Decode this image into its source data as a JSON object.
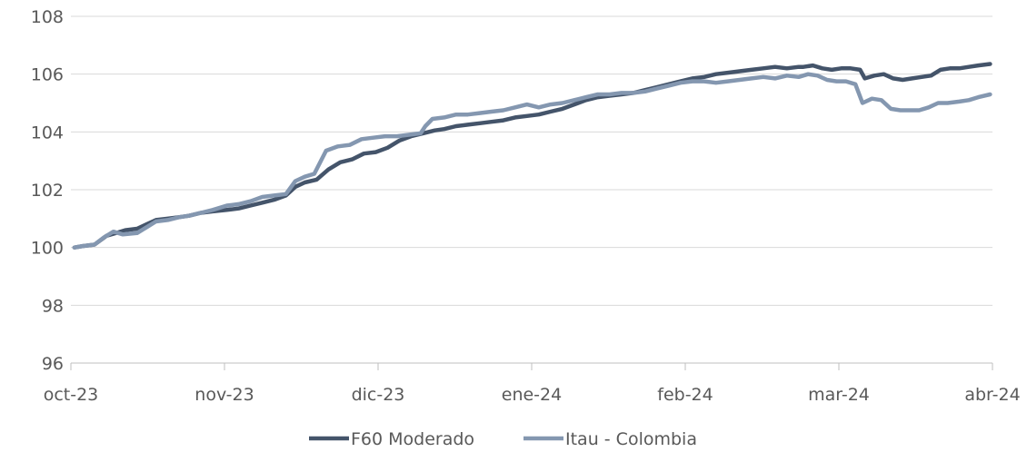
{
  "chart_data": {
    "type": "line",
    "title": "",
    "xlabel": "",
    "ylabel": "",
    "x_ticks": [
      "oct-23",
      "nov-23",
      "dic-23",
      "ene-24",
      "feb-24",
      "mar-24",
      "abr-24"
    ],
    "y_ticks": [
      96,
      98,
      100,
      102,
      104,
      106,
      108
    ],
    "ylim": [
      96,
      108
    ],
    "grid": true,
    "legend_position": "bottom",
    "series": [
      {
        "name": "F60 Moderado",
        "color": "#44546a",
        "points": [
          [
            0.15,
            100.0
          ],
          [
            0.5,
            100.05
          ],
          [
            1.0,
            100.1
          ],
          [
            1.5,
            100.4
          ],
          [
            1.9,
            100.5
          ],
          [
            2.3,
            100.6
          ],
          [
            2.8,
            100.65
          ],
          [
            3.2,
            100.8
          ],
          [
            3.6,
            100.95
          ],
          [
            4.1,
            101.0
          ],
          [
            4.6,
            101.05
          ],
          [
            5.0,
            101.1
          ],
          [
            5.5,
            101.2
          ],
          [
            6.0,
            101.25
          ],
          [
            6.6,
            101.3
          ],
          [
            7.1,
            101.35
          ],
          [
            7.6,
            101.45
          ],
          [
            8.1,
            101.55
          ],
          [
            8.6,
            101.65
          ],
          [
            9.1,
            101.8
          ],
          [
            9.5,
            102.1
          ],
          [
            9.9,
            102.25
          ],
          [
            10.4,
            102.35
          ],
          [
            10.9,
            102.7
          ],
          [
            11.4,
            102.95
          ],
          [
            11.9,
            103.05
          ],
          [
            12.4,
            103.25
          ],
          [
            12.9,
            103.3
          ],
          [
            13.4,
            103.45
          ],
          [
            13.9,
            103.7
          ],
          [
            14.4,
            103.85
          ],
          [
            14.9,
            103.95
          ],
          [
            15.4,
            104.05
          ],
          [
            15.8,
            104.1
          ],
          [
            16.3,
            104.2
          ],
          [
            16.8,
            104.25
          ],
          [
            17.3,
            104.3
          ],
          [
            17.8,
            104.35
          ],
          [
            18.3,
            104.4
          ],
          [
            18.8,
            104.5
          ],
          [
            19.3,
            104.55
          ],
          [
            19.8,
            104.6
          ],
          [
            20.3,
            104.7
          ],
          [
            20.8,
            104.8
          ],
          [
            21.3,
            104.95
          ],
          [
            21.8,
            105.1
          ],
          [
            22.3,
            105.2
          ],
          [
            22.8,
            105.25
          ],
          [
            23.3,
            105.3
          ],
          [
            23.8,
            105.35
          ],
          [
            24.3,
            105.45
          ],
          [
            24.8,
            105.55
          ],
          [
            25.3,
            105.65
          ],
          [
            25.8,
            105.75
          ],
          [
            26.3,
            105.85
          ],
          [
            26.8,
            105.9
          ],
          [
            27.3,
            106.0
          ],
          [
            27.8,
            106.05
          ],
          [
            28.3,
            106.1
          ],
          [
            28.8,
            106.15
          ],
          [
            29.3,
            106.2
          ],
          [
            29.8,
            106.25
          ],
          [
            30.3,
            106.2
          ],
          [
            30.8,
            106.25
          ],
          [
            31.0,
            106.25
          ],
          [
            31.4,
            106.3
          ],
          [
            31.8,
            106.2
          ],
          [
            32.2,
            106.15
          ],
          [
            32.6,
            106.2
          ],
          [
            33.0,
            106.2
          ],
          [
            33.4,
            106.15
          ],
          [
            33.6,
            105.85
          ],
          [
            34.0,
            105.95
          ],
          [
            34.4,
            106.0
          ],
          [
            34.8,
            105.85
          ],
          [
            35.2,
            105.8
          ],
          [
            35.6,
            105.85
          ],
          [
            36.0,
            105.9
          ],
          [
            36.4,
            105.95
          ],
          [
            36.8,
            106.15
          ],
          [
            37.2,
            106.2
          ],
          [
            37.6,
            106.2
          ],
          [
            38.0,
            106.25
          ],
          [
            38.4,
            106.3
          ],
          [
            38.9,
            106.35
          ]
        ]
      },
      {
        "name": "Itau - Colombia",
        "color": "#8497b0",
        "points": [
          [
            0.15,
            100.0
          ],
          [
            0.5,
            100.05
          ],
          [
            1.0,
            100.1
          ],
          [
            1.4,
            100.35
          ],
          [
            1.8,
            100.55
          ],
          [
            2.2,
            100.45
          ],
          [
            2.8,
            100.5
          ],
          [
            3.2,
            100.7
          ],
          [
            3.6,
            100.9
          ],
          [
            4.1,
            100.95
          ],
          [
            4.6,
            101.05
          ],
          [
            5.0,
            101.1
          ],
          [
            5.5,
            101.2
          ],
          [
            6.0,
            101.3
          ],
          [
            6.6,
            101.45
          ],
          [
            7.1,
            101.5
          ],
          [
            7.6,
            101.6
          ],
          [
            8.1,
            101.75
          ],
          [
            8.6,
            101.8
          ],
          [
            9.1,
            101.85
          ],
          [
            9.5,
            102.3
          ],
          [
            9.9,
            102.45
          ],
          [
            10.3,
            102.55
          ],
          [
            10.8,
            103.35
          ],
          [
            11.3,
            103.5
          ],
          [
            11.8,
            103.55
          ],
          [
            12.3,
            103.75
          ],
          [
            12.8,
            103.8
          ],
          [
            13.3,
            103.85
          ],
          [
            13.8,
            103.85
          ],
          [
            14.3,
            103.9
          ],
          [
            14.8,
            103.95
          ],
          [
            15.0,
            104.2
          ],
          [
            15.3,
            104.45
          ],
          [
            15.8,
            104.5
          ],
          [
            16.3,
            104.6
          ],
          [
            16.8,
            104.6
          ],
          [
            17.3,
            104.65
          ],
          [
            17.8,
            104.7
          ],
          [
            18.3,
            104.75
          ],
          [
            18.8,
            104.85
          ],
          [
            19.3,
            104.95
          ],
          [
            19.8,
            104.85
          ],
          [
            20.3,
            104.95
          ],
          [
            20.8,
            105.0
          ],
          [
            21.3,
            105.1
          ],
          [
            21.8,
            105.2
          ],
          [
            22.3,
            105.3
          ],
          [
            22.8,
            105.3
          ],
          [
            23.3,
            105.35
          ],
          [
            23.8,
            105.35
          ],
          [
            24.3,
            105.4
          ],
          [
            24.8,
            105.5
          ],
          [
            25.3,
            105.6
          ],
          [
            25.8,
            105.7
          ],
          [
            26.3,
            105.75
          ],
          [
            26.8,
            105.75
          ],
          [
            27.3,
            105.7
          ],
          [
            27.8,
            105.75
          ],
          [
            28.3,
            105.8
          ],
          [
            28.8,
            105.85
          ],
          [
            29.3,
            105.9
          ],
          [
            29.8,
            105.85
          ],
          [
            30.3,
            105.95
          ],
          [
            30.8,
            105.9
          ],
          [
            31.2,
            106.0
          ],
          [
            31.6,
            105.95
          ],
          [
            32.0,
            105.8
          ],
          [
            32.4,
            105.75
          ],
          [
            32.8,
            105.75
          ],
          [
            33.2,
            105.65
          ],
          [
            33.5,
            105.0
          ],
          [
            33.9,
            105.15
          ],
          [
            34.3,
            105.1
          ],
          [
            34.7,
            104.8
          ],
          [
            35.1,
            104.75
          ],
          [
            35.5,
            104.75
          ],
          [
            35.9,
            104.75
          ],
          [
            36.3,
            104.85
          ],
          [
            36.7,
            105.0
          ],
          [
            37.1,
            105.0
          ],
          [
            37.6,
            105.05
          ],
          [
            38.0,
            105.1
          ],
          [
            38.4,
            105.2
          ],
          [
            38.9,
            105.3
          ]
        ]
      }
    ]
  }
}
